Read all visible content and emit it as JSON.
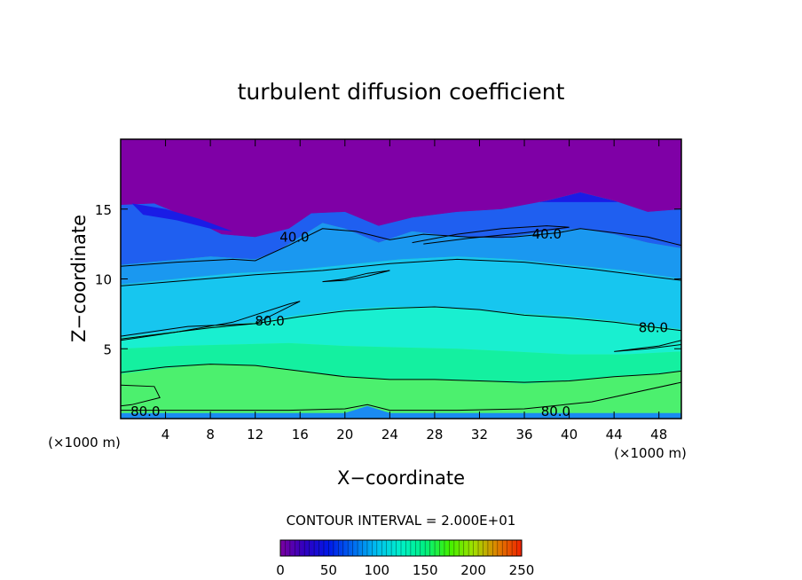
{
  "chart_data": {
    "type": "heatmap",
    "title": "turbulent diffusion coefficient",
    "xlabel": "X−coordinate",
    "ylabel": "Z−coordinate",
    "x_unit_left": "(×1000 m)",
    "x_unit_right": "(×1000 m)",
    "xlim": [
      0,
      50
    ],
    "ylim": [
      0,
      20
    ],
    "xticks": [
      4,
      8,
      12,
      16,
      20,
      24,
      28,
      32,
      36,
      40,
      44,
      48
    ],
    "xtick_labels": [
      "4",
      "8",
      "12",
      "16",
      "20",
      "24",
      "28",
      "32",
      "36",
      "40",
      "44",
      "48"
    ],
    "yticks": [
      5,
      10,
      15
    ],
    "ytick_labels": [
      "5",
      "10",
      "15"
    ],
    "contour_interval_text": "CONTOUR INTERVAL = 2.000E+01",
    "colorbar": {
      "range": [
        0,
        250
      ],
      "ticks": [
        0,
        50,
        100,
        150,
        200,
        250
      ],
      "tick_labels": [
        "0",
        "50",
        "100",
        "150",
        "200",
        "250"
      ],
      "colors": [
        "#7a009f",
        "#3000c0",
        "#0018e8",
        "#0068f0",
        "#00c0f0",
        "#00f0c8",
        "#00f080",
        "#40f000",
        "#a0e000",
        "#e08000",
        "#f02000"
      ]
    },
    "field_colors": {
      "top": "#7f00a6",
      "band_15": "#1a1ce6",
      "band_12": "#1f5ff0",
      "band_10": "#1a98f0",
      "band_8": "#17c6ef",
      "band_6": "#19efd0",
      "band_4": "#14f0a0",
      "band_2": "#4cf06e",
      "bottom_strip": "#1a8bf2"
    },
    "contour_labels": [
      {
        "text": "40.0",
        "x": 15.5,
        "z": 13.0
      },
      {
        "text": "40.0",
        "x": 38.0,
        "z": 13.2
      },
      {
        "text": "80.0",
        "x": 13.3,
        "z": 7.0
      },
      {
        "text": "80.0",
        "x": 47.5,
        "z": 6.5
      },
      {
        "text": "80.0",
        "x": 2.2,
        "z": 0.5
      },
      {
        "text": "80.0",
        "x": 38.8,
        "z": 0.5
      }
    ]
  }
}
